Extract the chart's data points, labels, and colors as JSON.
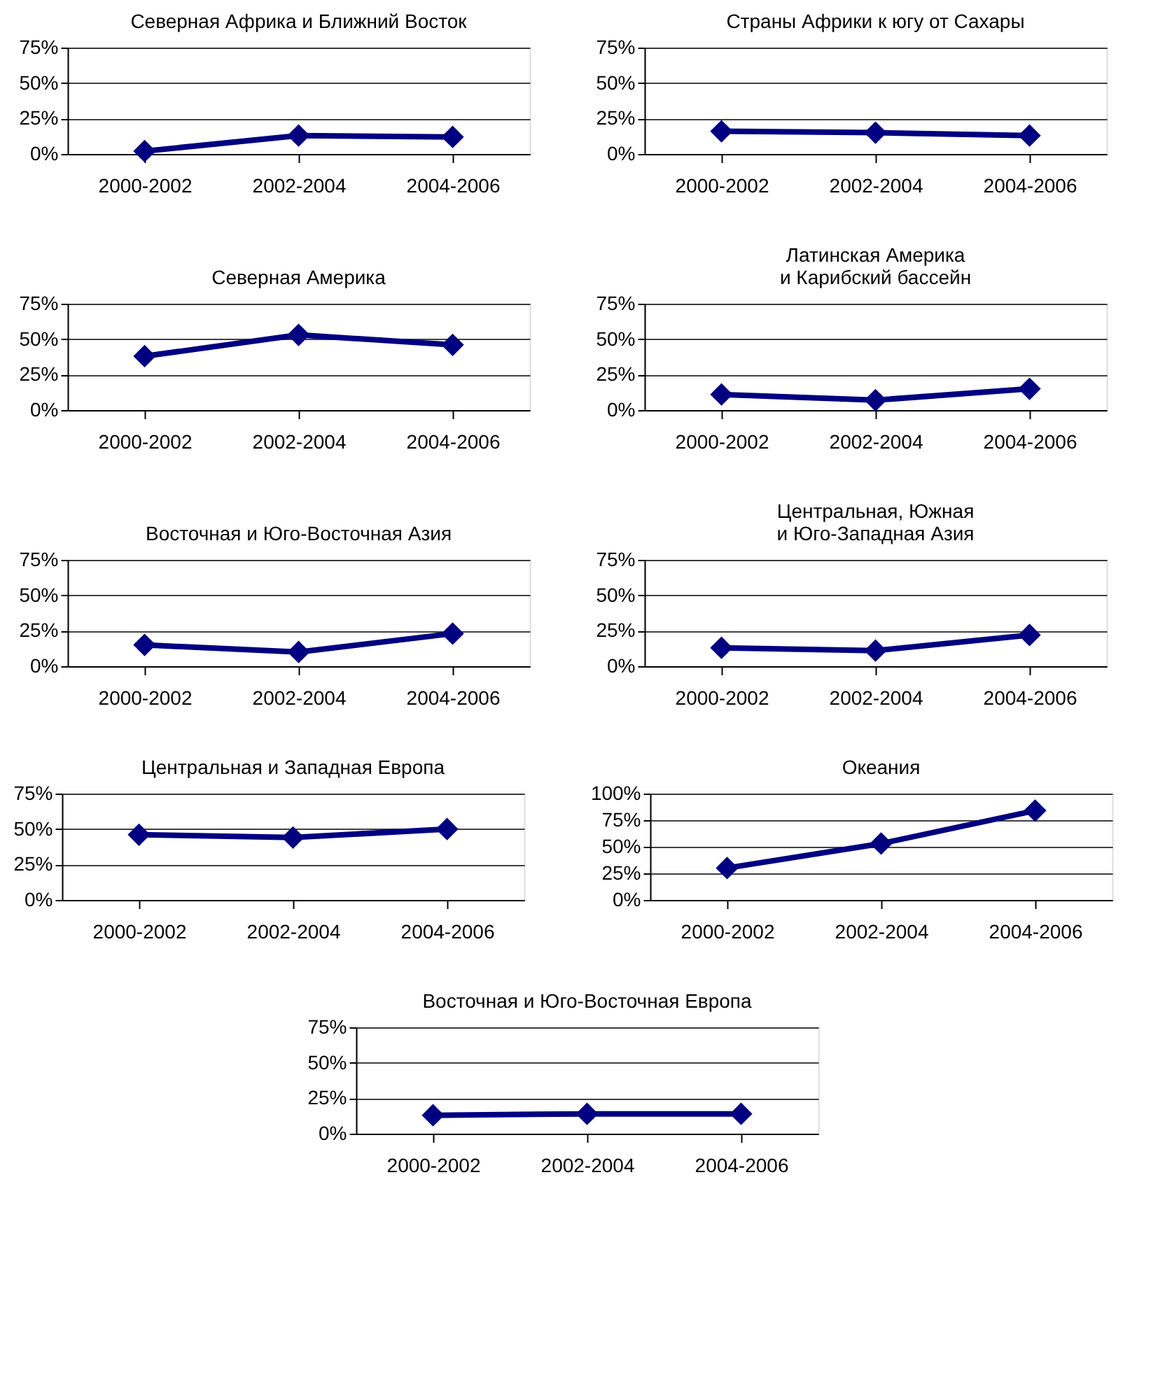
{
  "chart_data": [
    {
      "type": "line",
      "title": "Северная Африка и Ближний Восток",
      "categories": [
        "2000-2002",
        "2002-2004",
        "2004-2006"
      ],
      "values": [
        2,
        13,
        12
      ],
      "color": "#000080",
      "ylim": [
        0,
        75
      ],
      "yticks": [
        {
          "value": 0,
          "label": "0%"
        },
        {
          "value": 25,
          "label": "25%"
        },
        {
          "value": 50,
          "label": "50%"
        },
        {
          "value": 75,
          "label": "75%"
        }
      ],
      "grid": "y",
      "marker": "diamond",
      "line_style": "solid"
    },
    {
      "type": "line",
      "title": "Страны Африки к югу от Сахары",
      "categories": [
        "2000-2002",
        "2002-2004",
        "2004-2006"
      ],
      "values": [
        16,
        15,
        13
      ],
      "color": "#000080",
      "ylim": [
        0,
        75
      ],
      "yticks": [
        {
          "value": 0,
          "label": "0%"
        },
        {
          "value": 25,
          "label": "25%"
        },
        {
          "value": 50,
          "label": "50%"
        },
        {
          "value": 75,
          "label": "75%"
        }
      ],
      "grid": "y",
      "marker": "diamond",
      "line_style": "solid"
    },
    {
      "type": "line",
      "title": "Северная Америка",
      "categories": [
        "2000-2002",
        "2002-2004",
        "2004-2006"
      ],
      "values": [
        38,
        53,
        46
      ],
      "color": "#000080",
      "ylim": [
        0,
        75
      ],
      "yticks": [
        {
          "value": 0,
          "label": "0%"
        },
        {
          "value": 25,
          "label": "25%"
        },
        {
          "value": 50,
          "label": "50%"
        },
        {
          "value": 75,
          "label": "75%"
        }
      ],
      "grid": "y",
      "marker": "diamond",
      "line_style": "solid"
    },
    {
      "type": "line",
      "title": "Латинская Америка\nи Карибский бассейн",
      "categories": [
        "2000-2002",
        "2002-2004",
        "2004-2006"
      ],
      "values": [
        11,
        7,
        15
      ],
      "color": "#000080",
      "ylim": [
        0,
        75
      ],
      "yticks": [
        {
          "value": 0,
          "label": "0%"
        },
        {
          "value": 25,
          "label": "25%"
        },
        {
          "value": 50,
          "label": "50%"
        },
        {
          "value": 75,
          "label": "75%"
        }
      ],
      "grid": "y",
      "marker": "diamond",
      "line_style": "solid"
    },
    {
      "type": "line",
      "title": "Восточная и Юго-Восточная Азия",
      "categories": [
        "2000-2002",
        "2002-2004",
        "2004-2006"
      ],
      "values": [
        15,
        10,
        23
      ],
      "color": "#000080",
      "ylim": [
        0,
        75
      ],
      "yticks": [
        {
          "value": 0,
          "label": "0%"
        },
        {
          "value": 25,
          "label": "25%"
        },
        {
          "value": 50,
          "label": "50%"
        },
        {
          "value": 75,
          "label": "75%"
        }
      ],
      "grid": "y",
      "marker": "diamond",
      "line_style": "solid"
    },
    {
      "type": "line",
      "title": "Центральная, Южная\nи Юго-Западная Азия",
      "categories": [
        "2000-2002",
        "2002-2004",
        "2004-2006"
      ],
      "values": [
        13,
        11,
        22
      ],
      "color": "#000080",
      "ylim": [
        0,
        75
      ],
      "yticks": [
        {
          "value": 0,
          "label": "0%"
        },
        {
          "value": 25,
          "label": "25%"
        },
        {
          "value": 50,
          "label": "50%"
        },
        {
          "value": 75,
          "label": "75%"
        }
      ],
      "grid": "y",
      "marker": "diamond",
      "line_style": "solid"
    },
    {
      "type": "line",
      "title": "Центральная и Западная Европа",
      "categories": [
        "2000-2002",
        "2002-2004",
        "2004-2006"
      ],
      "values": [
        46,
        44,
        50
      ],
      "color": "#000080",
      "ylim": [
        0,
        75
      ],
      "yticks": [
        {
          "value": 0,
          "label": "0%"
        },
        {
          "value": 25,
          "label": "25%"
        },
        {
          "value": 50,
          "label": "50%"
        },
        {
          "value": 75,
          "label": "75%"
        }
      ],
      "grid": "y",
      "marker": "diamond",
      "line_style": "solid"
    },
    {
      "type": "line",
      "title": "Океания",
      "categories": [
        "2000-2002",
        "2002-2004",
        "2004-2006"
      ],
      "values": [
        30,
        53,
        84
      ],
      "color": "#000080",
      "ylim": [
        0,
        100
      ],
      "yticks": [
        {
          "value": 0,
          "label": "0%"
        },
        {
          "value": 25,
          "label": "25%"
        },
        {
          "value": 50,
          "label": "50%"
        },
        {
          "value": 75,
          "label": "75%"
        },
        {
          "value": 100,
          "label": "100%"
        }
      ],
      "grid": "y",
      "marker": "diamond",
      "line_style": "solid"
    },
    {
      "type": "line",
      "title": "Восточная и Юго-Восточная Европа",
      "categories": [
        "2000-2002",
        "2002-2004",
        "2004-2006"
      ],
      "values": [
        13,
        14,
        14
      ],
      "color": "#000080",
      "ylim": [
        0,
        75
      ],
      "yticks": [
        {
          "value": 0,
          "label": "0%"
        },
        {
          "value": 25,
          "label": "25%"
        },
        {
          "value": 50,
          "label": "50%"
        },
        {
          "value": 75,
          "label": "75%"
        }
      ],
      "grid": "y",
      "marker": "diamond",
      "line_style": "solid"
    }
  ]
}
